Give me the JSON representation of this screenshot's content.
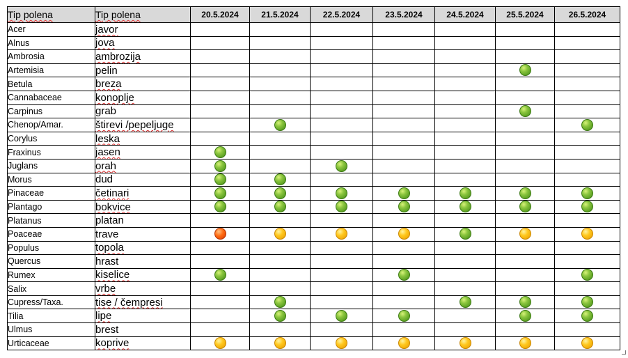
{
  "headers": {
    "latin": "Tip polena",
    "local": "Tip polena",
    "dates": [
      "20.5.2024",
      "21.5.2024",
      "22.5.2024",
      "23.5.2024",
      "24.5.2024",
      "25.5.2024",
      "26.5.2024"
    ]
  },
  "legend_colors": {
    "g": "#7cbf2a",
    "y": "#ffc21a",
    "o": "#ff5a0a"
  },
  "rows": [
    {
      "latin": "Acer",
      "local": "javor",
      "levels": [
        "",
        "",
        "",
        "",
        "",
        "",
        ""
      ]
    },
    {
      "latin": "Alnus",
      "local": "jova",
      "levels": [
        "",
        "",
        "",
        "",
        "",
        "",
        ""
      ]
    },
    {
      "latin": "Ambrosia",
      "local": "ambrozija",
      "levels": [
        "",
        "",
        "",
        "",
        "",
        "",
        ""
      ]
    },
    {
      "latin": "Artemisia",
      "local": "pelin",
      "levels": [
        "",
        "",
        "",
        "",
        "",
        "g",
        ""
      ]
    },
    {
      "latin": "Betula",
      "local": "breza",
      "levels": [
        "",
        "",
        "",
        "",
        "",
        "",
        ""
      ]
    },
    {
      "latin": "Cannabaceae",
      "local": "konoplje",
      "levels": [
        "",
        "",
        "",
        "",
        "",
        "",
        ""
      ]
    },
    {
      "latin": "Carpinus",
      "local": "grab",
      "levels": [
        "",
        "",
        "",
        "",
        "",
        "g",
        ""
      ]
    },
    {
      "latin": "Chenop/Amar.",
      "local": "štirevi /pepeljuge",
      "levels": [
        "",
        "g",
        "",
        "",
        "",
        "",
        "g"
      ]
    },
    {
      "latin": "Corylus",
      "local": "leska",
      "levels": [
        "",
        "",
        "",
        "",
        "",
        "",
        ""
      ]
    },
    {
      "latin": "Fraxinus",
      "local": "jasen",
      "levels": [
        "g",
        "",
        "",
        "",
        "",
        "",
        ""
      ]
    },
    {
      "latin": "Juglans",
      "local": "orah",
      "levels": [
        "g",
        "",
        "g",
        "",
        "",
        "",
        ""
      ]
    },
    {
      "latin": "Morus",
      "local": "dud",
      "levels": [
        "g",
        "g",
        "",
        "",
        "",
        "",
        ""
      ]
    },
    {
      "latin": "Pinaceae",
      "local": "četinari",
      "levels": [
        "g",
        "g",
        "g",
        "g",
        "g",
        "g",
        "g"
      ]
    },
    {
      "latin": "Plantago",
      "local": "bokvice",
      "levels": [
        "g",
        "g",
        "g",
        "g",
        "g",
        "g",
        "g"
      ]
    },
    {
      "latin": "Platanus",
      "local": "platan",
      "levels": [
        "",
        "",
        "",
        "",
        "",
        "",
        ""
      ]
    },
    {
      "latin": "Poaceae",
      "local": "trave",
      "levels": [
        "o",
        "y",
        "y",
        "y",
        "g",
        "y",
        "y"
      ]
    },
    {
      "latin": "Populus",
      "local": "topola",
      "levels": [
        "",
        "",
        "",
        "",
        "",
        "",
        ""
      ]
    },
    {
      "latin": "Quercus",
      "local": "hrast",
      "levels": [
        "",
        "",
        "",
        "",
        "",
        "",
        ""
      ]
    },
    {
      "latin": "Rumex",
      "local": "kiselice",
      "levels": [
        "g",
        "",
        "",
        "g",
        "",
        "",
        "g"
      ]
    },
    {
      "latin": "Salix",
      "local": "vrbe",
      "levels": [
        "",
        "",
        "",
        "",
        "",
        "",
        ""
      ]
    },
    {
      "latin": "Cupress/Taxa.",
      "local": "tise / čempresi",
      "levels": [
        "",
        "g",
        "",
        "",
        "g",
        "g",
        "g"
      ]
    },
    {
      "latin": "Tilia",
      "local": "lipe",
      "levels": [
        "",
        "g",
        "g",
        "g",
        "",
        "g",
        "g"
      ]
    },
    {
      "latin": "Ulmus",
      "local": "brest",
      "levels": [
        "",
        "",
        "",
        "",
        "",
        "",
        ""
      ]
    },
    {
      "latin": "Urticaceae",
      "local": "koprive",
      "levels": [
        "y",
        "y",
        "y",
        "y",
        "y",
        "y",
        "y"
      ]
    }
  ]
}
